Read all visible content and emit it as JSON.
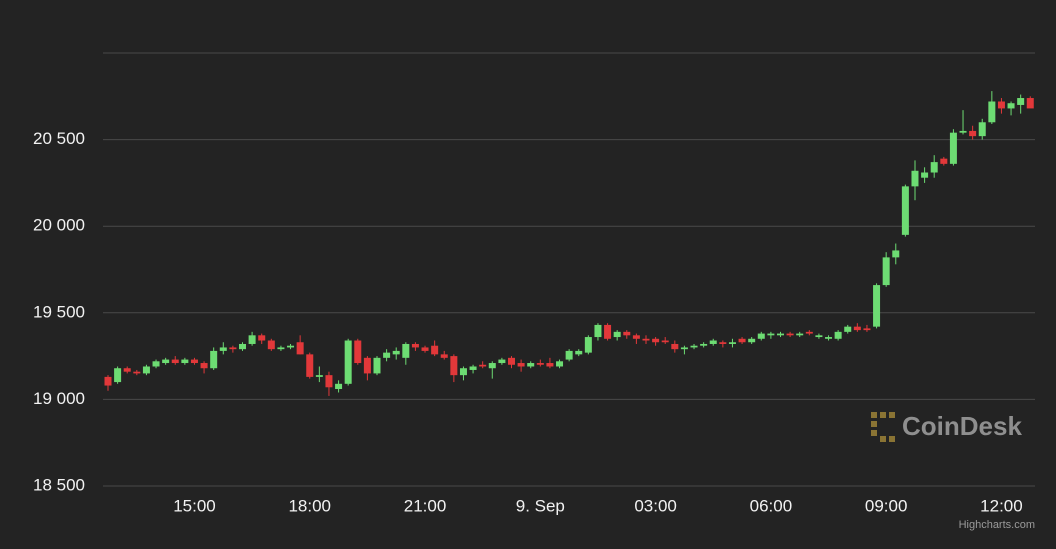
{
  "chart_data": {
    "type": "candlestick",
    "categories": [
      null,
      null,
      null,
      null,
      null,
      null,
      null,
      null,
      null,
      "15:00",
      null,
      null,
      null,
      null,
      null,
      null,
      null,
      null,
      null,
      null,
      null,
      "18:00",
      null,
      null,
      null,
      null,
      null,
      null,
      null,
      null,
      null,
      null,
      null,
      "21:00",
      null,
      null,
      null,
      null,
      null,
      null,
      null,
      null,
      null,
      null,
      null,
      "9. Sep",
      null,
      null,
      null,
      null,
      null,
      null,
      null,
      null,
      null,
      null,
      null,
      "03:00",
      null,
      null,
      null,
      null,
      null,
      null,
      null,
      null,
      null,
      null,
      null,
      "06:00",
      null,
      null,
      null,
      null,
      null,
      null,
      null,
      null,
      null,
      null,
      null,
      "09:00",
      null,
      null,
      null,
      null,
      null,
      null,
      null,
      null,
      null,
      null,
      null,
      "12:00",
      null,
      null,
      null
    ],
    "open": [
      19130,
      19100,
      19180,
      19160,
      19150,
      19190,
      19210,
      19230,
      19210,
      19230,
      19210,
      19180,
      19280,
      19300,
      19290,
      19320,
      19370,
      19340,
      19290,
      19300,
      19330,
      19260,
      19130,
      19140,
      19060,
      19090,
      19340,
      19240,
      19150,
      19240,
      19260,
      19240,
      19320,
      19300,
      19310,
      19260,
      19250,
      19140,
      19170,
      19200,
      19180,
      19210,
      19240,
      19210,
      19190,
      19210,
      19210,
      19190,
      19230,
      19260,
      19270,
      19360,
      19430,
      19360,
      19390,
      19370,
      19350,
      19350,
      19340,
      19320,
      19290,
      19300,
      19310,
      19320,
      19330,
      19320,
      19350,
      19330,
      19350,
      19370,
      19370,
      19380,
      19370,
      19390,
      19360,
      19350,
      19350,
      19390,
      19420,
      19410,
      19420,
      19660,
      19820,
      19950,
      20230,
      20280,
      20310,
      20390,
      20360,
      20540,
      20550,
      20520,
      20600,
      20720,
      20680,
      20700,
      20740
    ],
    "high": [
      19140,
      19190,
      19190,
      19170,
      19200,
      19230,
      19240,
      19250,
      19240,
      19240,
      19220,
      19300,
      19330,
      19310,
      19330,
      19390,
      19380,
      19350,
      19310,
      19320,
      19370,
      19270,
      19190,
      19160,
      19110,
      19350,
      19350,
      19250,
      19250,
      19290,
      19300,
      19330,
      19330,
      19310,
      19340,
      19280,
      19260,
      19190,
      19200,
      19220,
      19220,
      19240,
      19250,
      19230,
      19220,
      19230,
      19240,
      19230,
      19290,
      19290,
      19370,
      19440,
      19440,
      19400,
      19400,
      19380,
      19370,
      19360,
      19360,
      19340,
      19310,
      19320,
      19330,
      19350,
      19340,
      19350,
      19360,
      19360,
      19390,
      19390,
      19390,
      19390,
      19390,
      19400,
      19380,
      19370,
      19400,
      19430,
      19440,
      19430,
      19670,
      19850,
      19900,
      20240,
      20380,
      20340,
      20410,
      20400,
      20560,
      20670,
      20580,
      20620,
      20780,
      20740,
      20720,
      20760,
      20750
    ],
    "low": [
      19050,
      19090,
      19150,
      19140,
      19140,
      19180,
      19200,
      19200,
      19200,
      19200,
      19150,
      19170,
      19260,
      19270,
      19280,
      19310,
      19320,
      19280,
      19280,
      19290,
      19260,
      19120,
      19100,
      19020,
      19040,
      19080,
      19200,
      19110,
      19140,
      19220,
      19230,
      19200,
      19280,
      19270,
      19250,
      19230,
      19100,
      19110,
      19150,
      19180,
      19120,
      19200,
      19180,
      19160,
      19180,
      19190,
      19180,
      19180,
      19220,
      19250,
      19260,
      19340,
      19340,
      19340,
      19350,
      19320,
      19320,
      19310,
      19320,
      19270,
      19260,
      19290,
      19300,
      19310,
      19300,
      19300,
      19320,
      19320,
      19340,
      19350,
      19360,
      19360,
      19360,
      19370,
      19350,
      19340,
      19340,
      19380,
      19390,
      19390,
      19410,
      19650,
      19780,
      19940,
      20150,
      20250,
      20280,
      20350,
      20350,
      20530,
      20500,
      20500,
      20590,
      20650,
      20640,
      20650,
      20690
    ],
    "close": [
      19080,
      19180,
      19160,
      19150,
      19190,
      19220,
      19230,
      19210,
      19230,
      19210,
      19180,
      19280,
      19300,
      19290,
      19320,
      19370,
      19340,
      19290,
      19300,
      19310,
      19260,
      19130,
      19140,
      19070,
      19090,
      19340,
      19210,
      19150,
      19240,
      19270,
      19280,
      19320,
      19300,
      19280,
      19260,
      19240,
      19140,
      19180,
      19190,
      19190,
      19210,
      19230,
      19200,
      19190,
      19210,
      19200,
      19190,
      19220,
      19280,
      19280,
      19360,
      19430,
      19350,
      19390,
      19370,
      19350,
      19340,
      19330,
      19330,
      19290,
      19300,
      19310,
      19320,
      19340,
      19320,
      19330,
      19330,
      19350,
      19380,
      19380,
      19380,
      19370,
      19380,
      19380,
      19370,
      19360,
      19390,
      19420,
      19400,
      19400,
      19660,
      19820,
      19860,
      20230,
      20320,
      20310,
      20370,
      20360,
      20540,
      20550,
      20520,
      20600,
      20720,
      20680,
      20710,
      20740,
      20680
    ],
    "up_color": "#6ddc73",
    "down_color": "#e2383a",
    "ylim": [
      18500,
      21000
    ],
    "yticks": [
      {
        "value": 18500,
        "label": "18 500"
      },
      {
        "value": 19000,
        "label": "19 000"
      },
      {
        "value": 19500,
        "label": "19 500"
      },
      {
        "value": 20000,
        "label": "20 000"
      },
      {
        "value": 20500,
        "label": "20 500"
      }
    ],
    "grid": true,
    "watermark": "CoinDesk",
    "credits": "Highcharts.com"
  }
}
